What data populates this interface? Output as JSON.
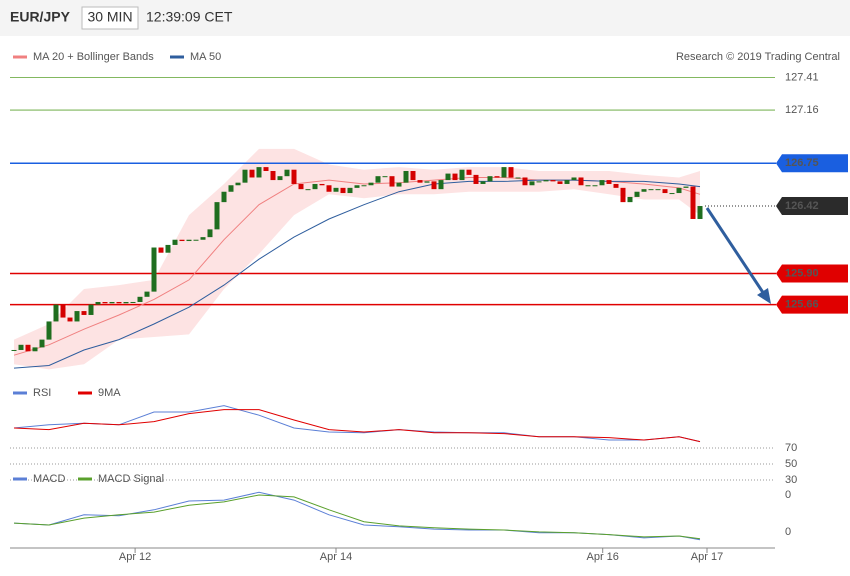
{
  "header": {
    "symbol": "EUR/JPY",
    "interval": "30 MIN",
    "time": "12:39:09 CET"
  },
  "credit": "Research © 2019 Trading Central",
  "chart_data": [
    {
      "type": "candlestick",
      "xlim": [
        0,
        108
      ],
      "ylim": [
        125.04,
        127.7
      ],
      "up_color": "#1f6e1f",
      "down_color": "#d40000",
      "close": [
        125.31,
        125.35,
        125.3,
        125.33,
        125.39,
        125.53,
        125.66,
        125.56,
        125.53,
        125.61,
        125.58,
        125.66,
        125.68,
        125.67,
        125.68,
        125.67,
        125.68,
        125.68,
        125.72,
        125.76,
        126.1,
        126.06,
        126.12,
        126.16,
        126.15,
        126.16,
        126.16,
        126.18,
        126.24,
        126.45,
        126.53,
        126.58,
        126.6,
        126.7,
        126.64,
        126.72,
        126.69,
        126.62,
        126.65,
        126.7,
        126.59,
        126.55,
        126.55,
        126.59,
        126.58,
        126.53,
        126.56,
        126.52,
        126.56,
        126.58,
        126.58,
        126.6,
        126.65,
        126.65,
        126.57,
        126.6,
        126.69,
        126.62,
        126.6,
        126.61,
        126.55,
        126.62,
        126.67,
        126.62,
        126.7,
        126.66,
        126.59,
        126.61,
        126.65,
        126.64,
        126.72,
        126.64,
        126.64,
        126.58,
        126.61,
        126.61,
        126.62,
        126.61,
        126.59,
        126.62,
        126.64,
        126.58,
        126.58,
        126.58,
        126.62,
        126.59,
        126.56,
        126.45,
        126.49,
        126.53,
        126.55,
        126.55,
        126.55,
        126.52,
        126.52,
        126.56,
        126.57,
        126.32,
        126.42
      ],
      "series": [
        {
          "name": "MA 20 + Bollinger Bands",
          "type": "band",
          "color": "#f08080",
          "fill": "#fde3e3",
          "x": [
            0,
            5,
            10,
            15,
            20,
            25,
            30,
            35,
            40,
            45,
            50,
            55,
            60,
            65,
            70,
            75,
            80,
            85,
            90,
            95,
            98
          ],
          "values": [
            125.27,
            125.35,
            125.47,
            125.58,
            125.7,
            125.85,
            126.16,
            126.43,
            126.59,
            126.62,
            126.59,
            126.6,
            126.62,
            126.64,
            126.64,
            126.62,
            126.62,
            126.61,
            126.59,
            126.56,
            126.51
          ],
          "upper": [
            125.39,
            125.51,
            125.78,
            125.81,
            125.85,
            126.35,
            126.59,
            126.86,
            126.86,
            126.74,
            126.7,
            126.72,
            126.7,
            126.72,
            126.72,
            126.69,
            126.69,
            126.69,
            126.66,
            126.64,
            126.69
          ],
          "lower": [
            125.2,
            125.16,
            125.2,
            125.39,
            125.41,
            125.43,
            125.78,
            126.05,
            126.35,
            126.51,
            126.48,
            126.51,
            126.51,
            126.53,
            126.53,
            126.53,
            126.55,
            126.51,
            126.47,
            126.47,
            126.35
          ]
        },
        {
          "name": "MA 50",
          "type": "line",
          "color": "#2f5e9e",
          "x": [
            0,
            5,
            10,
            15,
            20,
            25,
            30,
            35,
            40,
            45,
            50,
            55,
            60,
            65,
            70,
            75,
            80,
            85,
            90,
            95,
            98
          ],
          "values": [
            125.17,
            125.19,
            125.31,
            125.39,
            125.51,
            125.64,
            125.81,
            126.01,
            126.18,
            126.32,
            126.43,
            126.53,
            126.59,
            126.61,
            126.61,
            126.62,
            126.62,
            126.61,
            126.61,
            126.59,
            126.57
          ]
        }
      ],
      "levels": [
        {
          "value": 127.41,
          "color": "#5aa02c",
          "kind": "line"
        },
        {
          "value": 127.16,
          "color": "#5aa02c",
          "kind": "line"
        },
        {
          "value": 126.75,
          "color": "#1a5fe0",
          "kind": "tag"
        },
        {
          "value": 126.42,
          "color": "#2b2b2b",
          "kind": "dotted-tag"
        },
        {
          "value": 125.9,
          "label": "125.90",
          "color": "#e00000",
          "kind": "tag"
        },
        {
          "value": 125.66,
          "color": "#e00000",
          "kind": "tag"
        }
      ]
    },
    {
      "type": "line",
      "xlim": [
        0,
        108
      ],
      "ylim": [
        25,
        130
      ],
      "yticks": [
        30,
        50,
        70
      ],
      "grid": true,
      "series": [
        {
          "name": "RSI",
          "color": "#5b7fd6",
          "x": [
            0,
            5,
            10,
            15,
            20,
            25,
            30,
            35,
            40,
            45,
            50,
            55,
            60,
            65,
            70,
            75,
            80,
            85,
            90,
            95,
            98
          ],
          "values": [
            95,
            99,
            101,
            99,
            115,
            115,
            123,
            111,
            95,
            90,
            89,
            93,
            90,
            89,
            89,
            84,
            84,
            80,
            80,
            84,
            78
          ]
        },
        {
          "name": "9MA",
          "color": "#e00000",
          "x": [
            0,
            5,
            10,
            15,
            20,
            25,
            30,
            35,
            40,
            45,
            50,
            55,
            60,
            65,
            70,
            75,
            80,
            85,
            90,
            95,
            98
          ],
          "values": [
            95,
            93,
            101,
            99,
            103,
            113,
            118,
            118,
            105,
            93,
            90,
            93,
            89,
            89,
            88,
            84,
            84,
            83,
            80,
            84,
            78
          ]
        }
      ]
    },
    {
      "type": "line",
      "xlim": [
        0,
        108
      ],
      "ylim": [
        -0.075,
        0.09
      ],
      "yticks": [
        {
          "value": 0.04,
          "label": "0"
        },
        {
          "value": -0.04,
          "label": "0"
        }
      ],
      "xticks": [
        {
          "value": 17.3,
          "label": "Apr 12"
        },
        {
          "value": 46,
          "label": "Apr 14"
        },
        {
          "value": 84.1,
          "label": "Apr 16"
        },
        {
          "value": 99,
          "label": "Apr 17"
        }
      ],
      "series": [
        {
          "name": "MACD",
          "color": "#5b7fd6",
          "x": [
            0,
            5,
            10,
            15,
            20,
            25,
            30,
            35,
            40,
            45,
            50,
            55,
            60,
            65,
            70,
            75,
            80,
            85,
            90,
            95,
            98
          ],
          "values": [
            -0.021,
            -0.025,
            -0.003,
            -0.005,
            0.008,
            0.027,
            0.029,
            0.046,
            0.029,
            -0.003,
            -0.025,
            -0.029,
            -0.034,
            -0.036,
            -0.036,
            -0.042,
            -0.042,
            -0.046,
            -0.053,
            -0.049,
            -0.057
          ]
        },
        {
          "name": "MACD Signal",
          "color": "#5aa02c",
          "x": [
            0,
            5,
            10,
            15,
            20,
            25,
            30,
            35,
            40,
            45,
            50,
            55,
            60,
            65,
            70,
            75,
            80,
            85,
            90,
            95,
            98
          ],
          "values": [
            -0.021,
            -0.025,
            -0.01,
            -0.003,
            0.003,
            0.018,
            0.025,
            0.04,
            0.036,
            0.008,
            -0.018,
            -0.027,
            -0.031,
            -0.034,
            -0.036,
            -0.04,
            -0.042,
            -0.046,
            -0.051,
            -0.049,
            -0.055
          ]
        }
      ]
    }
  ]
}
